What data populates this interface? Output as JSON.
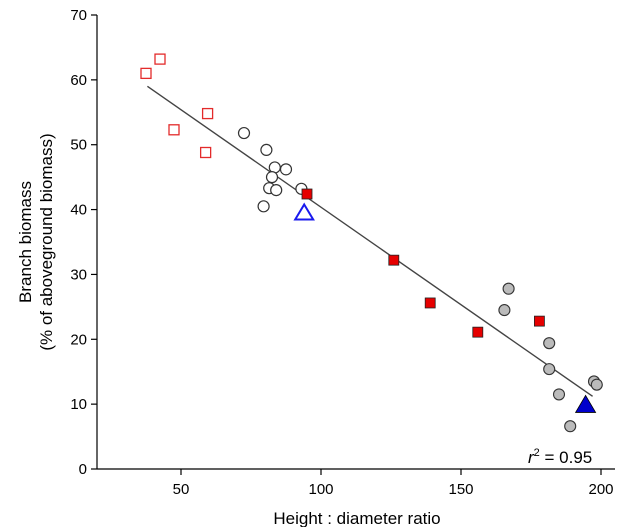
{
  "chart_data": {
    "type": "scatter",
    "title": "",
    "xlabel": "Height : diameter ratio",
    "ylabel_lines": [
      "Branch biomass",
      "(% of aboveground biomass)"
    ],
    "xlim": [
      20,
      205
    ],
    "ylim": [
      0,
      70
    ],
    "xticks": [
      50,
      100,
      150,
      200
    ],
    "yticks": [
      0,
      10,
      20,
      30,
      40,
      50,
      60,
      70
    ],
    "grid": false,
    "annotation": {
      "r_symbol": "r",
      "exponent": "2",
      "text": " = 0.95"
    },
    "regression_line": {
      "x": [
        38,
        197
      ],
      "y": [
        59.0,
        11.2
      ]
    },
    "series": [
      {
        "marker": "square-open",
        "color": "#e32b2b",
        "points": [
          [
            37.5,
            61
          ],
          [
            42.5,
            63.2
          ],
          [
            47.5,
            52.3
          ],
          [
            59.5,
            54.8
          ],
          [
            58.8,
            48.8
          ]
        ]
      },
      {
        "marker": "circle-open",
        "color": "#333333",
        "points": [
          [
            72.5,
            51.8
          ],
          [
            80.5,
            49.2
          ],
          [
            83.5,
            46.5
          ],
          [
            87.5,
            46.2
          ],
          [
            82.5,
            45
          ],
          [
            81.5,
            43.3
          ],
          [
            84,
            43
          ],
          [
            93,
            43.2
          ],
          [
            79.5,
            40.5
          ]
        ]
      },
      {
        "marker": "square-filled",
        "color": "#e60000",
        "points": [
          [
            95,
            42.4
          ],
          [
            126,
            32.2
          ],
          [
            139,
            25.6
          ],
          [
            156,
            21.1
          ],
          [
            178,
            22.8
          ]
        ]
      },
      {
        "marker": "circle-filled",
        "color": "#bbbbbb",
        "points": [
          [
            167,
            27.8
          ],
          [
            165.5,
            24.5
          ],
          [
            181.5,
            19.4
          ],
          [
            181.5,
            15.4
          ],
          [
            185,
            11.5
          ],
          [
            189,
            6.6
          ],
          [
            197.5,
            13.5
          ],
          [
            198.5,
            13
          ]
        ]
      },
      {
        "marker": "triangle-open",
        "color": "#1a1aee",
        "points": [
          [
            94,
            39.4
          ]
        ]
      },
      {
        "marker": "triangle-filled",
        "color": "#0000cc",
        "points": [
          [
            194.5,
            9.8
          ]
        ]
      }
    ]
  }
}
